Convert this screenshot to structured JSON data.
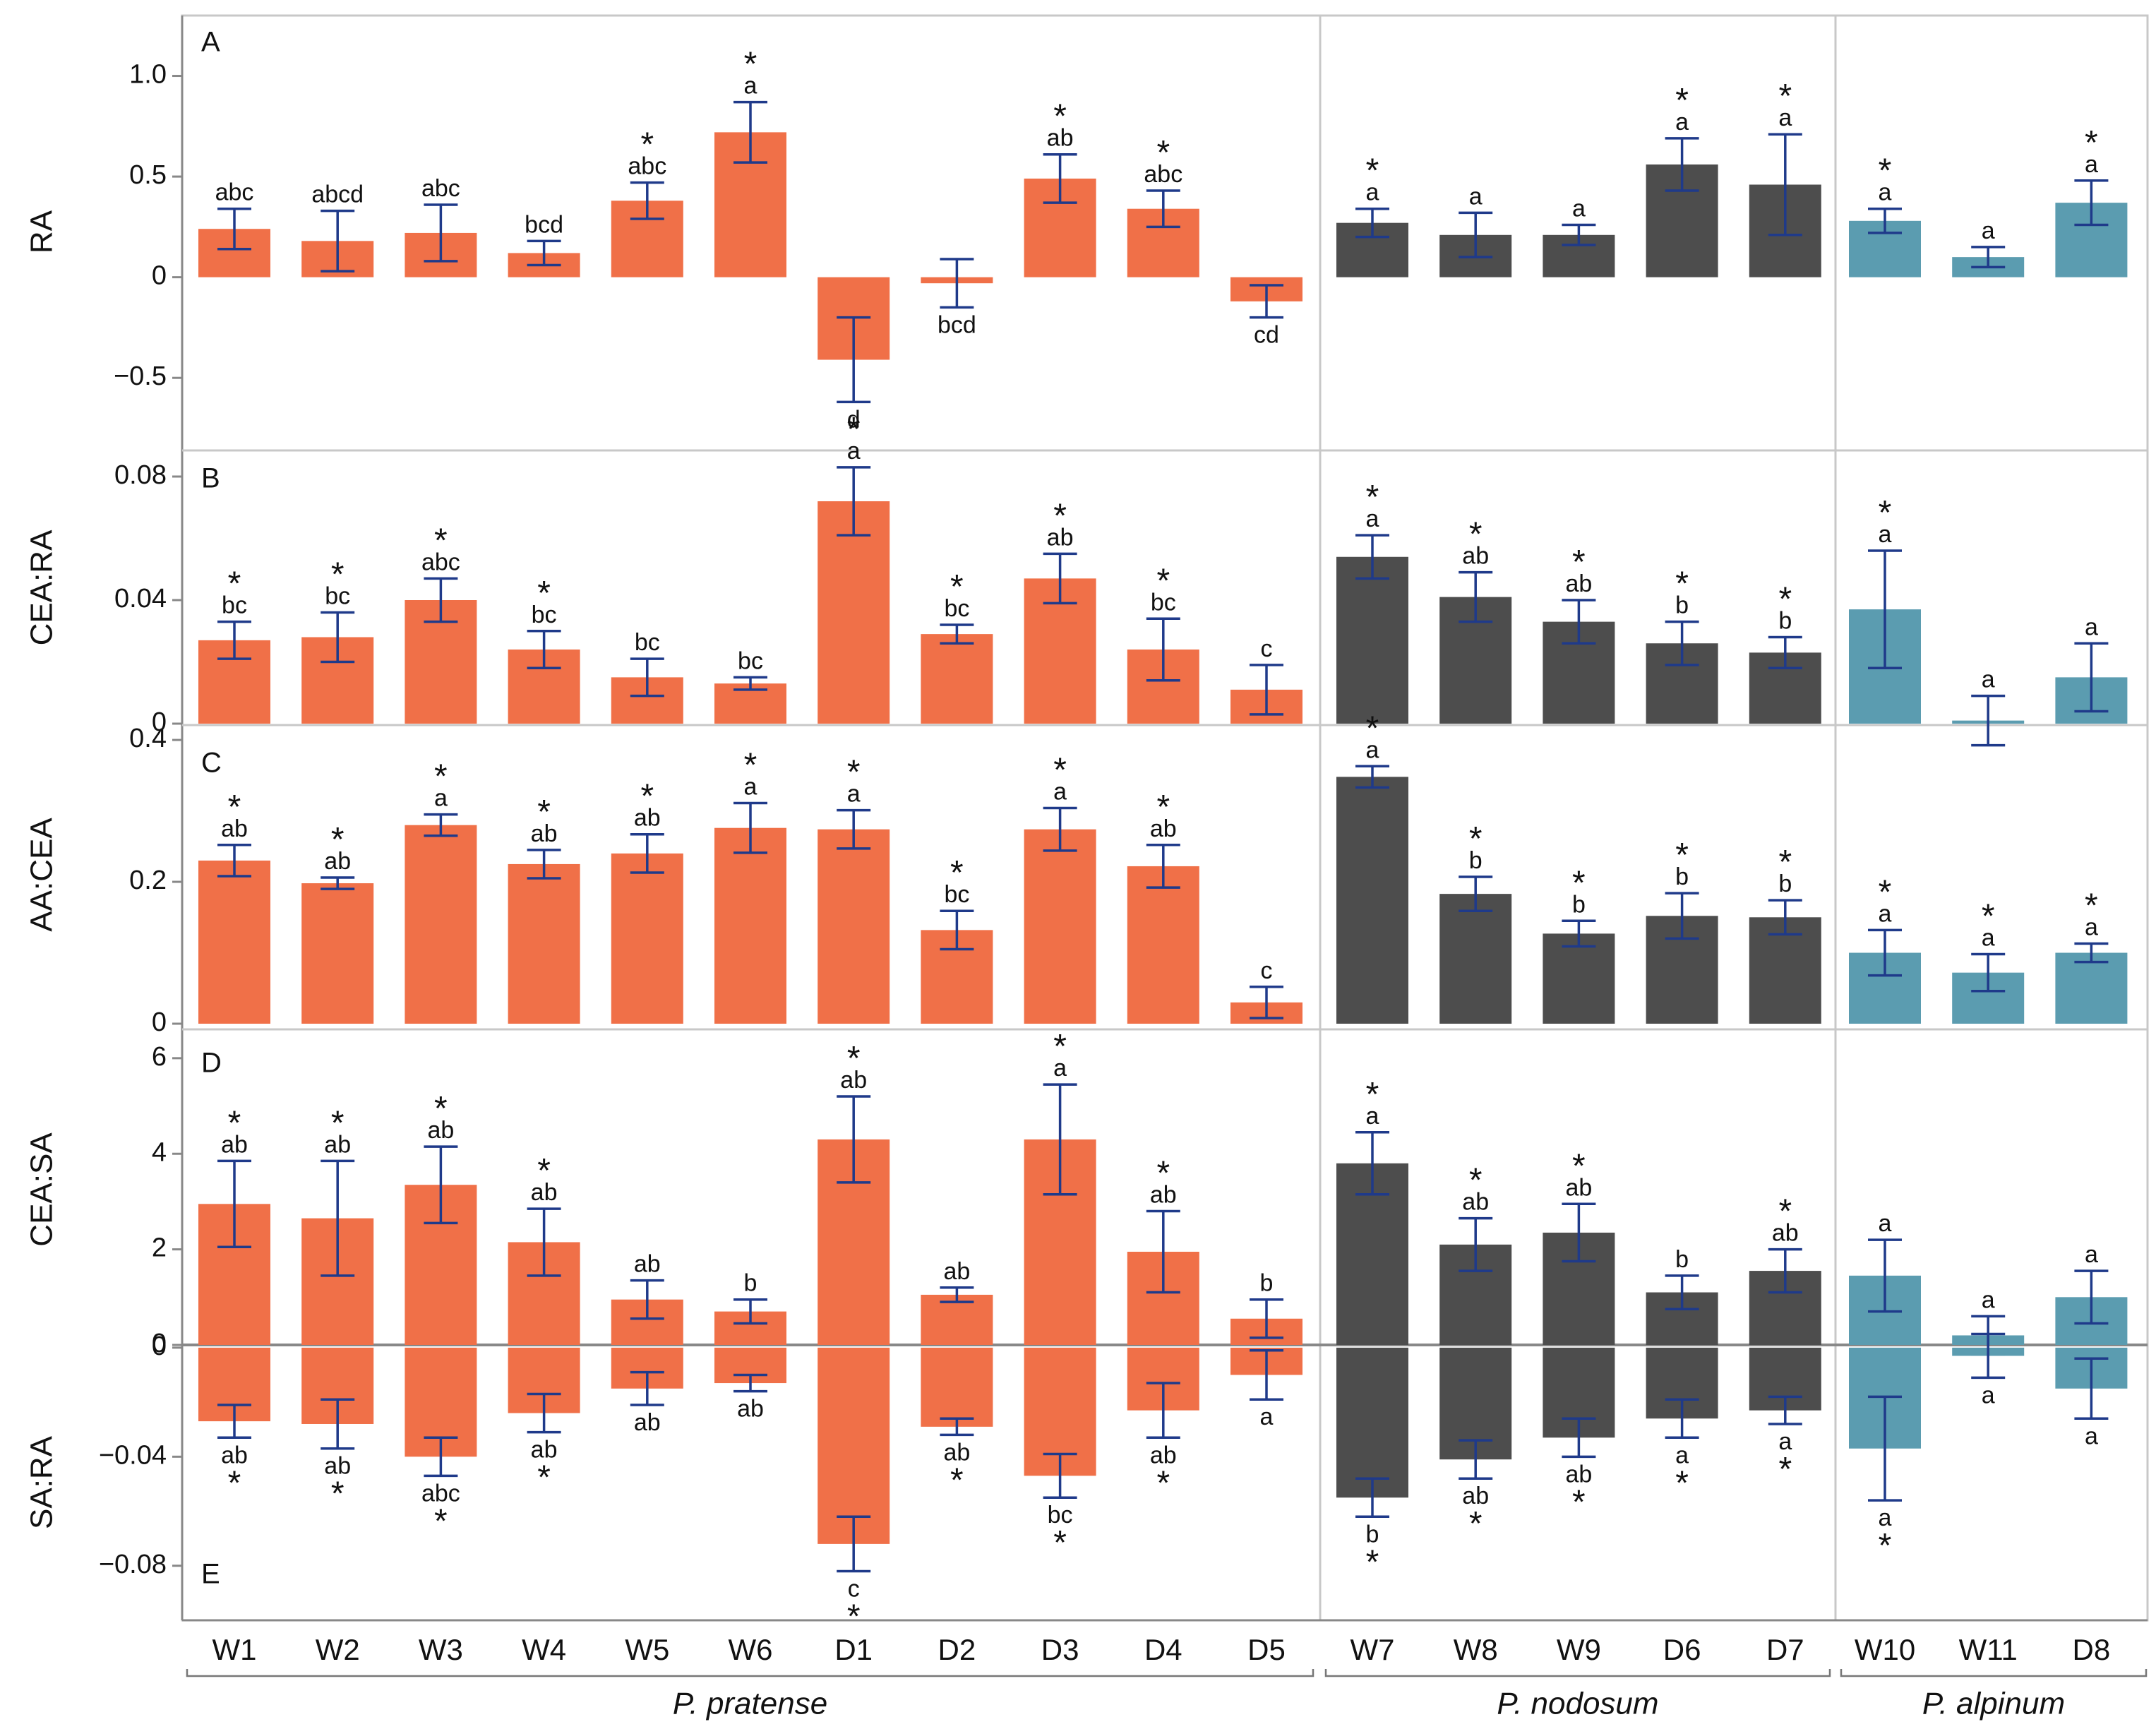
{
  "chart_data": {
    "type": "bar",
    "categories": [
      "W1",
      "W2",
      "W3",
      "W4",
      "W5",
      "W6",
      "D1",
      "D2",
      "D3",
      "D4",
      "D5",
      "W7",
      "W8",
      "W9",
      "D6",
      "D7",
      "W10",
      "W11",
      "D8"
    ],
    "groups": [
      {
        "name": "P. pratense",
        "start": 0,
        "end": 10
      },
      {
        "name": "P. nodosum",
        "start": 11,
        "end": 15
      },
      {
        "name": "P. alpinum",
        "start": 16,
        "end": 18
      }
    ],
    "group_colors": [
      "#f07048",
      "#4d4d4d",
      "#5b9cb0"
    ],
    "error_bar_color": "#1f3a8a",
    "panels": [
      {
        "id": "A",
        "ylabel": "RA",
        "ylim": [
          -0.85,
          1.3
        ],
        "ticks": [
          1.0,
          0.5,
          0,
          -0.5
        ],
        "tick_labels": [
          "1.0",
          "0.5",
          "0",
          "−0.5"
        ],
        "values": [
          0.24,
          0.18,
          0.22,
          0.12,
          0.38,
          0.72,
          -0.41,
          -0.03,
          0.49,
          0.34,
          -0.12,
          0.27,
          0.21,
          0.21,
          0.56,
          0.46,
          0.28,
          0.1,
          0.37
        ],
        "errors": [
          0.1,
          0.15,
          0.14,
          0.06,
          0.09,
          0.15,
          0.21,
          0.12,
          0.12,
          0.09,
          0.08,
          0.07,
          0.11,
          0.05,
          0.13,
          0.25,
          0.06,
          0.05,
          0.11
        ],
        "letters": [
          "abc",
          "abcd",
          "abc",
          "bcd",
          "abc",
          "a",
          "d",
          "bcd",
          "ab",
          "abc",
          "cd",
          "a",
          "a",
          "a",
          "a",
          "a",
          "a",
          "a",
          "a"
        ],
        "stars": [
          false,
          false,
          false,
          false,
          true,
          true,
          false,
          false,
          true,
          true,
          false,
          true,
          false,
          false,
          true,
          true,
          true,
          false,
          true
        ]
      },
      {
        "id": "B",
        "ylabel": "CEA:RA",
        "ylim": [
          0,
          0.088
        ],
        "ticks": [
          0.08,
          0.04,
          0
        ],
        "tick_labels": [
          "0.08",
          "0.04",
          "0"
        ],
        "values": [
          0.027,
          0.028,
          0.04,
          0.024,
          0.015,
          0.013,
          0.072,
          0.029,
          0.047,
          0.024,
          0.011,
          0.054,
          0.041,
          0.033,
          0.026,
          0.023,
          0.037,
          0.001,
          0.015
        ],
        "errors": [
          0.006,
          0.008,
          0.007,
          0.006,
          0.006,
          0.002,
          0.011,
          0.003,
          0.008,
          0.01,
          0.008,
          0.007,
          0.008,
          0.007,
          0.007,
          0.005,
          0.019,
          0.008,
          0.011
        ],
        "letters": [
          "bc",
          "bc",
          "abc",
          "bc",
          "bc",
          "bc",
          "a",
          "bc",
          "ab",
          "bc",
          "c",
          "a",
          "ab",
          "ab",
          "b",
          "b",
          "a",
          "a",
          "a"
        ],
        "stars": [
          true,
          true,
          true,
          true,
          false,
          false,
          true,
          true,
          true,
          true,
          false,
          true,
          true,
          true,
          true,
          true,
          true,
          false,
          false
        ]
      },
      {
        "id": "C",
        "ylabel": "AA:CEA",
        "ylim": [
          0,
          0.42
        ],
        "ticks": [
          0.4,
          0.2,
          0
        ],
        "tick_labels": [
          "0.4",
          "0.2",
          "0"
        ],
        "values": [
          0.23,
          0.198,
          0.28,
          0.225,
          0.24,
          0.276,
          0.274,
          0.132,
          0.274,
          0.222,
          0.03,
          0.348,
          0.183,
          0.127,
          0.152,
          0.15,
          0.1,
          0.072,
          0.1
        ],
        "errors": [
          0.022,
          0.008,
          0.015,
          0.02,
          0.027,
          0.035,
          0.027,
          0.027,
          0.03,
          0.03,
          0.022,
          0.015,
          0.024,
          0.018,
          0.032,
          0.024,
          0.032,
          0.026,
          0.013
        ],
        "letters": [
          "ab",
          "ab",
          "a",
          "ab",
          "ab",
          "a",
          "a",
          "bc",
          "a",
          "ab",
          "c",
          "a",
          "b",
          "b",
          "b",
          "b",
          "a",
          "a",
          "a"
        ],
        "stars": [
          true,
          true,
          true,
          true,
          true,
          true,
          true,
          true,
          true,
          true,
          false,
          true,
          true,
          true,
          true,
          true,
          true,
          true,
          true
        ]
      },
      {
        "id": "D",
        "ylabel": "CEA:SA",
        "ylim": [
          0,
          6.5
        ],
        "ticks": [
          6,
          4,
          2,
          0
        ],
        "tick_labels": [
          "6",
          "4",
          "2",
          "0"
        ],
        "values": [
          2.95,
          2.65,
          3.35,
          2.15,
          0.95,
          0.7,
          4.3,
          1.05,
          4.3,
          1.95,
          0.55,
          3.8,
          2.1,
          2.35,
          1.1,
          1.55,
          1.45,
          0.2,
          1.0
        ],
        "errors": [
          0.9,
          1.2,
          0.8,
          0.7,
          0.4,
          0.25,
          0.9,
          0.15,
          1.15,
          0.85,
          0.4,
          0.65,
          0.55,
          0.6,
          0.35,
          0.45,
          0.75,
          0.4,
          0.55
        ],
        "letters": [
          "ab",
          "ab",
          "ab",
          "ab",
          "ab",
          "b",
          "ab",
          "ab",
          "a",
          "ab",
          "b",
          "a",
          "ab",
          "ab",
          "b",
          "ab",
          "a",
          "a",
          "a"
        ],
        "stars": [
          true,
          true,
          true,
          true,
          false,
          false,
          true,
          false,
          true,
          true,
          false,
          true,
          true,
          true,
          false,
          true,
          false,
          false,
          false
        ]
      },
      {
        "id": "E",
        "ylabel": "SA:RA",
        "ylim": [
          -0.1,
          0.001
        ],
        "ticks": [
          0,
          -0.04,
          -0.08
        ],
        "tick_labels": [
          "0",
          "−0.04",
          "−0.08"
        ],
        "values": [
          -0.027,
          -0.028,
          -0.04,
          -0.024,
          -0.015,
          -0.013,
          -0.072,
          -0.029,
          -0.047,
          -0.023,
          -0.01,
          -0.055,
          -0.041,
          -0.033,
          -0.026,
          -0.023,
          -0.037,
          -0.003,
          -0.015
        ],
        "errors": [
          0.006,
          0.009,
          0.007,
          0.007,
          0.006,
          0.003,
          0.01,
          0.003,
          0.008,
          0.01,
          0.009,
          0.007,
          0.007,
          0.007,
          0.007,
          0.005,
          0.019,
          0.008,
          0.011
        ],
        "letters": [
          "ab",
          "ab",
          "abc",
          "ab",
          "ab",
          "ab",
          "c",
          "ab",
          "bc",
          "ab",
          "a",
          "b",
          "ab",
          "ab",
          "a",
          "a",
          "a",
          "a",
          "a"
        ],
        "stars": [
          true,
          true,
          true,
          true,
          false,
          false,
          true,
          true,
          true,
          true,
          false,
          true,
          true,
          true,
          true,
          true,
          true,
          false,
          false
        ]
      }
    ]
  }
}
